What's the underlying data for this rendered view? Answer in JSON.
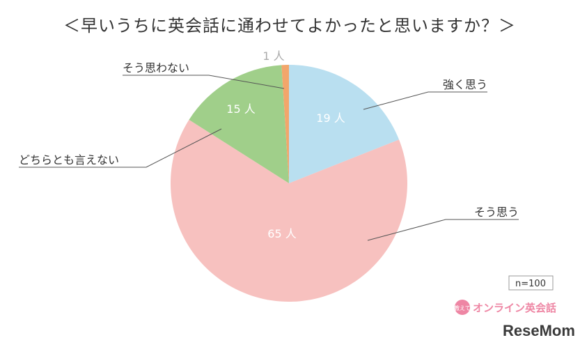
{
  "chart_data": {
    "type": "pie",
    "title": "＜早いうちに英会話に通わせてよかったと思いますか？＞",
    "unit": "人",
    "slices": [
      {
        "label": "強く思う",
        "value": 19,
        "color": "#b9dff0"
      },
      {
        "label": "そう思う",
        "value": 65,
        "color": "#f7c1bf"
      },
      {
        "label": "どちらとも言えない",
        "value": 15,
        "color": "#a0cf8a"
      },
      {
        "label": "そう思わない",
        "value": 1,
        "color": "#f2a66b"
      }
    ],
    "n_label": "n=100"
  },
  "brand": {
    "badge": "教えて",
    "name": "オンライン英会話",
    "watermark": "ReseMom"
  }
}
